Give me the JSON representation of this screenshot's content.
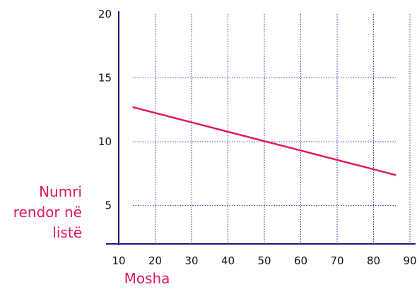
{
  "chart_data": {
    "type": "line",
    "xlabel": "Mosha",
    "ylabel_lines": [
      "Numri",
      "rendor në",
      "listë"
    ],
    "xlim": [
      10,
      90
    ],
    "ylim": [
      2,
      20
    ],
    "x_ticks": [
      10,
      20,
      30,
      40,
      50,
      60,
      70,
      80,
      90
    ],
    "y_ticks": [
      5,
      10,
      15,
      20
    ],
    "grid": true,
    "series": [
      {
        "x": [
          14,
          86
        ],
        "y": [
          12.7,
          7.4
        ]
      }
    ]
  },
  "colors": {
    "line": "#e0195a",
    "axis_title": "#e0195a",
    "axis": "#1a1a80",
    "grid": "#3333aa"
  }
}
